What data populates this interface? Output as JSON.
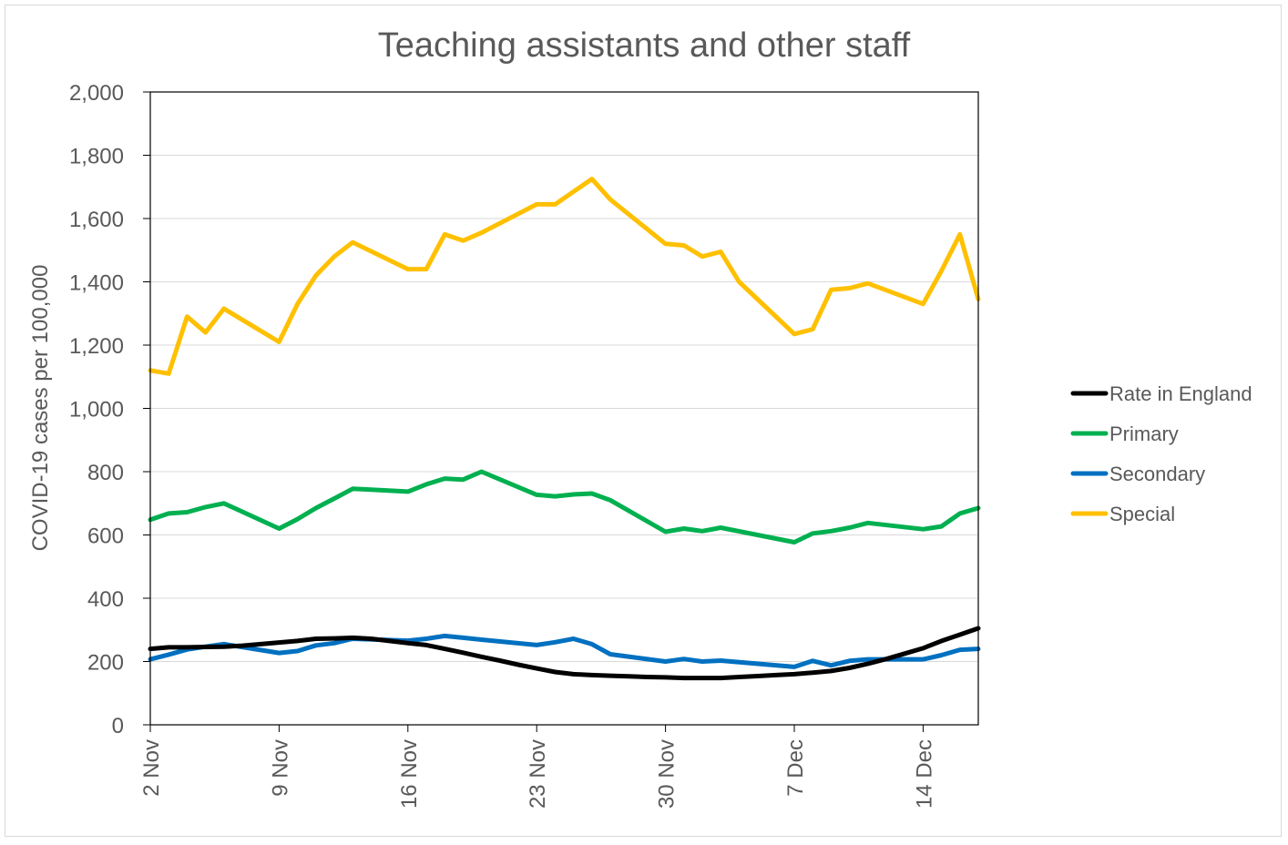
{
  "chart_data": {
    "type": "line",
    "title": "Teaching assistants and other staff",
    "xlabel": "",
    "ylabel": "COVID-19 cases per 100,000",
    "ylim": [
      0,
      2000
    ],
    "yticks": [
      0,
      200,
      400,
      600,
      800,
      1000,
      1200,
      1400,
      1600,
      1800,
      2000
    ],
    "ytick_labels": [
      "0",
      "200",
      "400",
      "600",
      "800",
      "1,000",
      "1,200",
      "1,400",
      "1,600",
      "1,800",
      "2,000"
    ],
    "xtick_labels": [
      "2 Nov",
      "9 Nov",
      "16 Nov",
      "23 Nov",
      "30 Nov",
      "7 Dec",
      "14 Dec"
    ],
    "xtick_positions": [
      0,
      7,
      14,
      21,
      28,
      35,
      42
    ],
    "xlim": [
      0,
      45
    ],
    "grid": "horizontal",
    "legend_position": "right",
    "series": [
      {
        "name": "Rate in England",
        "color": "#000000",
        "x": [
          0,
          1,
          2,
          3,
          4,
          5,
          6,
          7,
          8,
          9,
          10,
          11,
          12,
          13,
          14,
          15,
          16,
          17,
          18,
          19,
          20,
          21,
          22,
          23,
          24,
          25,
          26,
          27,
          28,
          29,
          30,
          31,
          32,
          33,
          34,
          35,
          36,
          37,
          38,
          39,
          40,
          41,
          42,
          43,
          44,
          45
        ],
        "values": [
          240,
          245,
          245,
          246,
          247,
          250,
          255,
          260,
          265,
          272,
          273,
          275,
          272,
          265,
          258,
          252,
          240,
          228,
          215,
          203,
          190,
          178,
          167,
          160,
          157,
          155,
          153,
          151,
          150,
          148,
          148,
          148,
          151,
          154,
          157,
          160,
          165,
          170,
          180,
          193,
          208,
          225,
          242,
          265,
          285,
          305
        ]
      },
      {
        "name": "Primary",
        "color": "#00b050",
        "x": [
          0,
          1,
          2,
          3,
          4,
          7,
          8,
          9,
          10,
          11,
          12,
          14,
          15,
          16,
          17,
          18,
          21,
          22,
          23,
          24,
          25,
          28,
          29,
          30,
          31,
          35,
          36,
          37,
          38,
          39,
          42,
          43,
          44,
          45
        ],
        "values": [
          648,
          668,
          672,
          688,
          700,
          620,
          650,
          685,
          715,
          746,
          743,
          737,
          760,
          778,
          775,
          800,
          727,
          722,
          728,
          731,
          710,
          610,
          620,
          612,
          623,
          577,
          605,
          612,
          623,
          638,
          618,
          627,
          668,
          685
        ]
      },
      {
        "name": "Secondary",
        "color": "#0070c0",
        "x": [
          0,
          1,
          2,
          3,
          4,
          7,
          8,
          9,
          10,
          11,
          14,
          15,
          16,
          17,
          18,
          21,
          22,
          23,
          24,
          25,
          28,
          29,
          30,
          31,
          35,
          36,
          37,
          38,
          39,
          40,
          41,
          42,
          43,
          44,
          45
        ],
        "values": [
          207,
          222,
          238,
          247,
          255,
          227,
          233,
          251,
          258,
          272,
          266,
          272,
          281,
          275,
          269,
          252,
          261,
          272,
          255,
          223,
          200,
          208,
          200,
          203,
          183,
          202,
          188,
          202,
          207,
          207,
          207,
          207,
          220,
          237,
          240
        ]
      },
      {
        "name": "Special",
        "color": "#ffc000",
        "x": [
          0,
          1,
          2,
          3,
          4,
          7,
          8,
          9,
          10,
          11,
          14,
          15,
          16,
          17,
          18,
          21,
          22,
          23,
          24,
          25,
          28,
          29,
          30,
          31,
          32,
          35,
          36,
          37,
          38,
          39,
          42,
          43,
          44,
          45
        ],
        "values": [
          1120,
          1110,
          1290,
          1240,
          1315,
          1210,
          1330,
          1420,
          1480,
          1525,
          1440,
          1440,
          1550,
          1530,
          1555,
          1645,
          1645,
          1685,
          1725,
          1660,
          1520,
          1515,
          1480,
          1495,
          1400,
          1235,
          1250,
          1375,
          1380,
          1395,
          1330,
          1435,
          1550,
          1345
        ]
      }
    ]
  }
}
